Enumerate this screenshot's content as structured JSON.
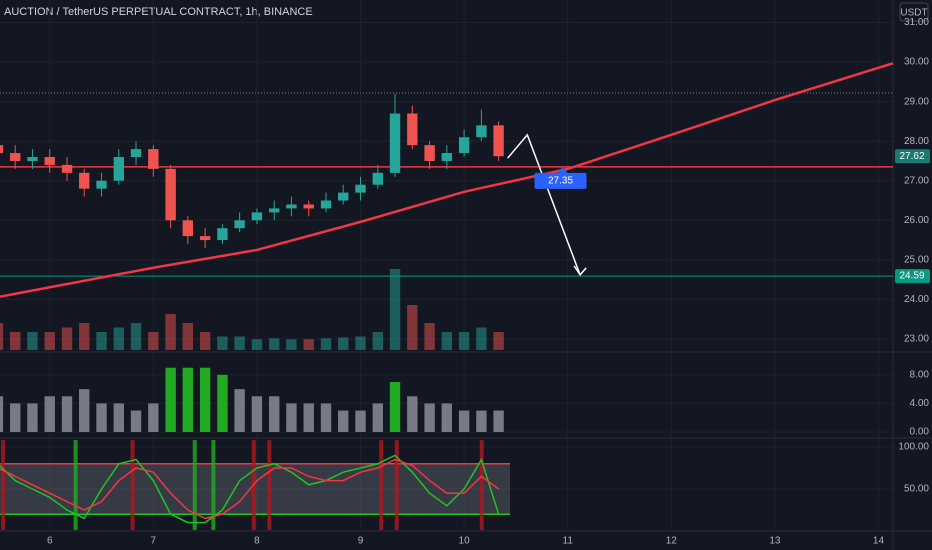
{
  "chart_data": {
    "type": "candlestick",
    "title": "AUCTION / TetherUS PERPETUAL CONTRACT, 1h, BINANCE",
    "currency_button": "USDT",
    "up_color": "#26a69a",
    "down_color": "#ef5350",
    "xlim": [
      5.52,
      14.14
    ],
    "xticks": [
      6,
      7,
      8,
      9,
      10,
      11,
      12,
      13,
      14
    ],
    "ylim": [
      22.67,
      31.57
    ],
    "yticks": [
      {
        "value": 23,
        "label": "23.00"
      },
      {
        "value": 24,
        "label": "24.00"
      },
      {
        "value": 25,
        "label": "25.00"
      },
      {
        "value": 26,
        "label": "26.00"
      },
      {
        "value": 27,
        "label": "27.00"
      },
      {
        "value": 28,
        "label": "28.00"
      },
      {
        "value": 29,
        "label": "29.00"
      },
      {
        "value": 30,
        "label": "30.00"
      },
      {
        "value": 31,
        "label": "31.00"
      }
    ],
    "candles": {
      "x": [
        5.5,
        5.667,
        5.833,
        6.0,
        6.167,
        6.333,
        6.5,
        6.667,
        6.833,
        7.0,
        7.167,
        7.333,
        7.5,
        7.667,
        7.833,
        8.0,
        8.167,
        8.333,
        8.5,
        8.667,
        8.833,
        9.0,
        9.167,
        9.333,
        9.5,
        9.667,
        9.833,
        10.0,
        10.167,
        10.333
      ],
      "open": [
        27.9,
        27.7,
        27.5,
        27.6,
        27.4,
        27.2,
        26.8,
        27.0,
        27.6,
        27.8,
        27.3,
        26.0,
        25.6,
        25.5,
        25.8,
        26.0,
        26.2,
        26.3,
        26.4,
        26.3,
        26.5,
        26.7,
        26.9,
        27.2,
        28.7,
        27.9,
        27.5,
        27.7,
        28.1,
        28.4
      ],
      "high": [
        28.3,
        27.9,
        27.8,
        27.8,
        27.6,
        27.3,
        27.2,
        27.8,
        28.0,
        27.9,
        27.4,
        26.1,
        25.8,
        25.9,
        26.2,
        26.3,
        26.5,
        26.6,
        26.5,
        26.7,
        26.9,
        27.1,
        27.4,
        29.2,
        28.9,
        28.0,
        27.9,
        28.3,
        28.8,
        28.5
      ],
      "low": [
        27.5,
        27.3,
        27.3,
        27.2,
        27.0,
        26.6,
        26.6,
        26.9,
        27.4,
        27.1,
        25.8,
        25.4,
        25.3,
        25.4,
        25.7,
        25.9,
        26.0,
        26.1,
        26.1,
        26.2,
        26.4,
        26.5,
        26.8,
        27.1,
        27.8,
        27.3,
        27.3,
        27.6,
        28.0,
        27.5
      ],
      "close": [
        27.7,
        27.5,
        27.6,
        27.4,
        27.2,
        26.8,
        27.0,
        27.6,
        27.8,
        27.3,
        26.0,
        25.6,
        25.5,
        25.8,
        26.0,
        26.2,
        26.3,
        26.4,
        26.3,
        26.5,
        26.7,
        26.9,
        27.2,
        28.7,
        27.9,
        27.5,
        27.7,
        28.1,
        28.4,
        27.62
      ]
    },
    "volume": {
      "vlim": [
        0,
        10
      ],
      "values": [
        3,
        2,
        2,
        2,
        2.5,
        3,
        2,
        2.5,
        3,
        2,
        4,
        3,
        2,
        1.5,
        1.5,
        1.2,
        1.3,
        1.2,
        1.2,
        1.3,
        1.4,
        1.5,
        2,
        9,
        5,
        3,
        2,
        2,
        2.5,
        2
      ]
    },
    "levels": [
      {
        "value": 27.35,
        "color": "#f23645"
      },
      {
        "value": 24.59,
        "color": "#089981"
      }
    ],
    "dotted_level": 29.22,
    "trend_curve": {
      "color": "#f23645",
      "x": [
        5.52,
        7,
        8,
        9,
        10,
        11,
        12,
        13,
        14.14
      ],
      "values": [
        24.07,
        24.8,
        25.25,
        25.96,
        26.72,
        27.3,
        28.16,
        29.04,
        29.97
      ]
    },
    "arrow": {
      "color": "#ffffff",
      "x": [
        10.42,
        10.61,
        11.12
      ],
      "values": [
        27.57,
        28.16,
        24.62
      ]
    },
    "annotation": {
      "label": "27.35",
      "x": 10.95,
      "value": 27.35,
      "color": "#2962ff"
    },
    "histogram": {
      "ylim": [
        -0.7,
        10.5
      ],
      "yticks": [
        {
          "value": 0,
          "label": "0.00"
        },
        {
          "value": 4,
          "label": "4.00"
        },
        {
          "value": 8,
          "label": "8.00"
        }
      ],
      "series": [
        {
          "color": "#787b86",
          "values": [
            5,
            4,
            4,
            5,
            5,
            6,
            4,
            4,
            3,
            4,
            null,
            null,
            null,
            null,
            6,
            5,
            5,
            4,
            4,
            4,
            3,
            3,
            4,
            null,
            5,
            4,
            4,
            3,
            3,
            3
          ]
        },
        {
          "color": "#22ab22",
          "values": [
            null,
            null,
            null,
            null,
            null,
            null,
            null,
            null,
            null,
            null,
            9,
            9,
            9,
            8,
            null,
            null,
            null,
            null,
            null,
            null,
            null,
            null,
            null,
            7,
            null,
            null,
            null,
            null,
            null,
            null
          ]
        }
      ]
    },
    "oscillator": {
      "ylim": [
        1.2,
        108.3
      ],
      "yticks": [
        {
          "value": 50,
          "label": "50.00"
        },
        {
          "value": 100,
          "label": "100.00"
        }
      ],
      "band": [
        20,
        80
      ],
      "series": [
        {
          "color": "#22c322",
          "values": [
            80,
            60,
            50,
            40,
            25,
            15,
            50,
            80,
            85,
            60,
            20,
            10,
            10,
            25,
            60,
            75,
            80,
            70,
            55,
            60,
            70,
            75,
            80,
            90,
            70,
            45,
            30,
            50,
            85,
            20
          ]
        },
        {
          "color": "#f23645",
          "values": [
            75,
            65,
            55,
            45,
            35,
            25,
            35,
            60,
            75,
            70,
            45,
            25,
            15,
            20,
            35,
            60,
            75,
            75,
            65,
            60,
            60,
            70,
            75,
            85,
            78,
            60,
            45,
            45,
            65,
            50
          ]
        }
      ],
      "buy_signals": [
        6.25,
        7.4,
        7.58
      ],
      "sell_signals": [
        5.55,
        6.8,
        7.97,
        8.12,
        9.2,
        9.35,
        10.17
      ]
    }
  }
}
